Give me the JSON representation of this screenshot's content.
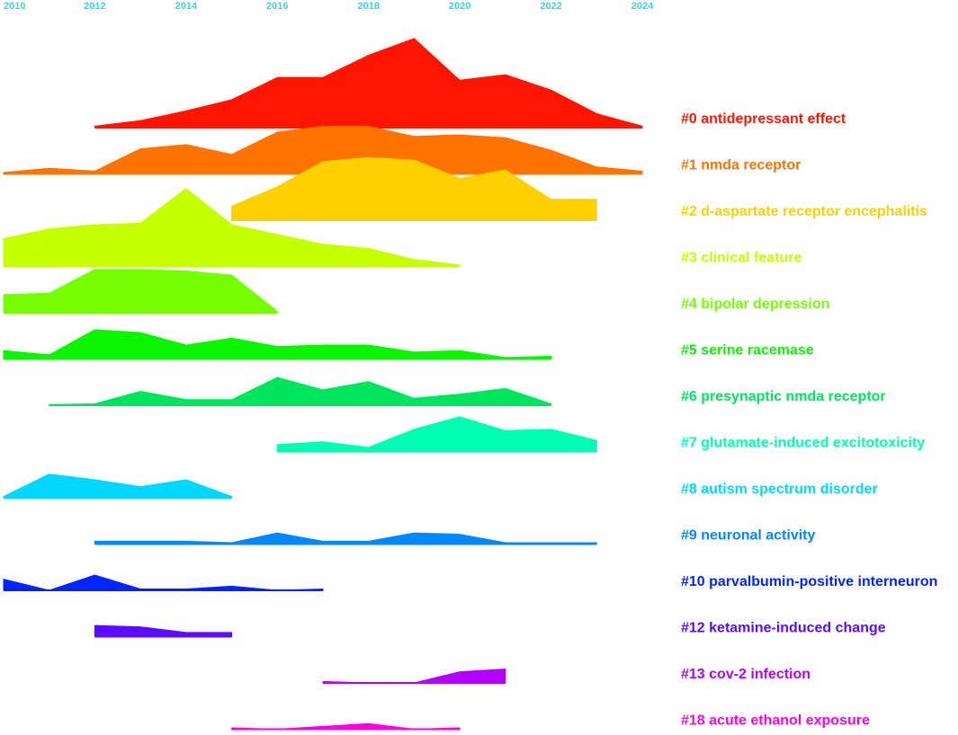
{
  "chart_data": {
    "type": "area",
    "x_ticks": [
      "2010",
      "2012",
      "2014",
      "2016",
      "2018",
      "2020",
      "2022",
      "2024"
    ],
    "x_range": [
      2010,
      2024
    ],
    "grid": false,
    "legend": "right",
    "series": [
      {
        "name": "#0 antidepressant effect",
        "color": "#ff1500",
        "x": [
          2012,
          2013,
          2014,
          2015,
          2016,
          2017,
          2018,
          2019,
          2020,
          2021,
          2022,
          2023,
          2024
        ],
        "values": [
          1.0,
          5.0,
          12.0,
          20.0,
          36.0,
          36.0,
          52.0,
          64.0,
          34.0,
          38.0,
          27.0,
          10.0,
          1.0
        ]
      },
      {
        "name": "#1 nmda receptor",
        "color": "#ff7300",
        "x": [
          2010,
          2011,
          2012,
          2013,
          2014,
          2015,
          2016,
          2017,
          2018,
          2019,
          2020,
          2021,
          2022,
          2023,
          2024
        ],
        "values": [
          1.0,
          4.0,
          2.0,
          18.0,
          21.0,
          14.0,
          30.0,
          34.0,
          34.0,
          27.0,
          28.0,
          26.0,
          17.0,
          5.0,
          2.0
        ]
      },
      {
        "name": "#2 d-aspartate receptor encephalitis",
        "color": "#ffd000",
        "x": [
          2015,
          2016,
          2017,
          2018,
          2019,
          2020,
          2021,
          2022,
          2023
        ],
        "values": [
          10.0,
          24.0,
          42.0,
          45.0,
          43.0,
          30.0,
          36.0,
          15.0,
          15.0
        ]
      },
      {
        "name": "#3 clinical feature",
        "color": "#c6ff00",
        "x": [
          2010,
          2011,
          2012,
          2013,
          2014,
          2015,
          2016,
          2017,
          2018,
          2019,
          2020
        ],
        "values": [
          20.0,
          27.0,
          30.0,
          31.0,
          56.0,
          30.0,
          23.0,
          16.0,
          13.0,
          5.0,
          1.0
        ]
      },
      {
        "name": "#4 bipolar depression",
        "color": "#75ff00",
        "x": [
          2010,
          2011,
          2012,
          2013,
          2014,
          2015,
          2016
        ],
        "values": [
          13.0,
          14.0,
          31.0,
          31.0,
          30.0,
          27.0,
          1.0
        ]
      },
      {
        "name": "#5 serine racemase",
        "color": "#0cf500",
        "x": [
          2010,
          2011,
          2012,
          2013,
          2014,
          2015,
          2016,
          2017,
          2018,
          2019,
          2020,
          2021,
          2022
        ],
        "values": [
          6.0,
          3.0,
          21.0,
          19.0,
          10.0,
          15.0,
          9.0,
          10.0,
          10.0,
          5.0,
          6.0,
          1.0,
          2.0
        ]
      },
      {
        "name": "#6 presynaptic nmda receptor",
        "color": "#00e65c",
        "x": [
          2011,
          2012,
          2013,
          2014,
          2015,
          2016,
          2017,
          2018,
          2019,
          2020,
          2021,
          2022
        ],
        "values": [
          0.5,
          1.0,
          10.0,
          4.0,
          4.0,
          20.0,
          11.0,
          17.0,
          5.0,
          8.0,
          12.0,
          1.0
        ]
      },
      {
        "name": "#7 glutamate-induced excitotoxicity",
        "color": "#00ffb2",
        "x": [
          2016,
          2017,
          2018,
          2019,
          2020,
          2021,
          2022,
          2023
        ],
        "values": [
          5.0,
          7.0,
          3.0,
          16.0,
          25.0,
          15.0,
          16.0,
          8.0
        ]
      },
      {
        "name": "#8 autism spectrum disorder",
        "color": "#00d8ff",
        "x": [
          2010,
          2011,
          2012,
          2013,
          2014,
          2015
        ],
        "values": [
          1.0,
          17.0,
          13.0,
          8.0,
          13.0,
          1.0
        ]
      },
      {
        "name": "#9 neuronal activity",
        "color": "#0088ff",
        "x": [
          2012,
          2013,
          2014,
          2015,
          2016,
          2017,
          2018,
          2019,
          2020,
          2021,
          2022,
          2023
        ],
        "values": [
          2.0,
          2.0,
          2.0,
          1.0,
          8.0,
          2.0,
          2.0,
          8.0,
          7.0,
          1.0,
          1.0,
          1.0
        ]
      },
      {
        "name": "#10 parvalbumin-positive interneuron",
        "color": "#0025ff",
        "x": [
          2010,
          2011,
          2012,
          2013,
          2014,
          2015,
          2016,
          2017
        ],
        "values": [
          8.0,
          0.0,
          11.0,
          1.0,
          1.0,
          3.0,
          0.0,
          1.0
        ]
      },
      {
        "name": "#12 ketamine-induced change",
        "color": "#5a0cff",
        "x": [
          2012,
          2013,
          2014,
          2015
        ],
        "values": [
          8.0,
          7.0,
          3.0,
          3.0
        ]
      },
      {
        "name": "#13 cov-2 infection",
        "color": "#b400ff",
        "x": [
          2017,
          2018,
          2019,
          2020,
          2021
        ],
        "values": [
          1.0,
          0.0,
          0.0,
          8.0,
          10.0
        ]
      },
      {
        "name": "#18 acute ethanol exposure",
        "color": "#ff00e6",
        "x": [
          2015,
          2016,
          2017,
          2018,
          2019,
          2020
        ],
        "values": [
          1.0,
          0.0,
          2.0,
          4.0,
          0.0,
          1.0
        ]
      }
    ]
  }
}
